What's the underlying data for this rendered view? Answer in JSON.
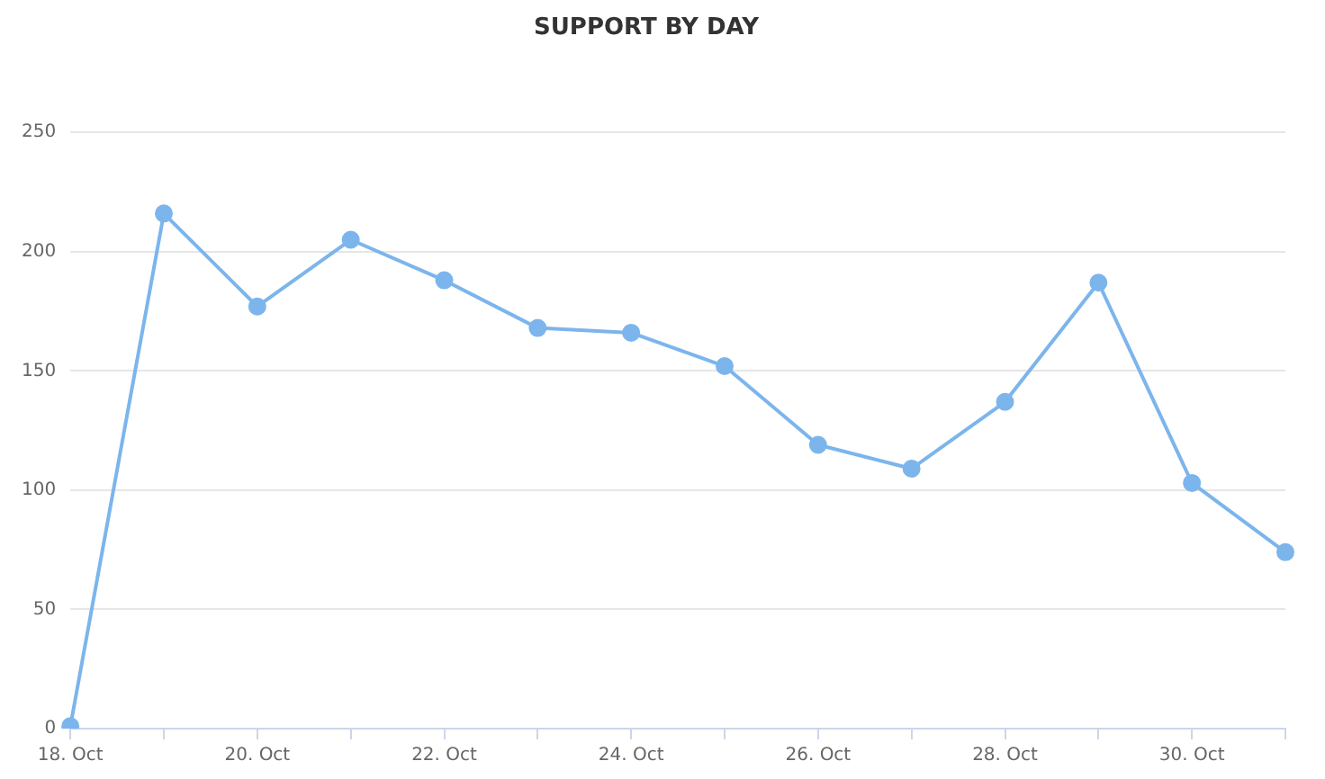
{
  "chart_data": {
    "type": "line",
    "title": "SUPPORT BY DAY",
    "categories": [
      "18. Oct",
      null,
      "20. Oct",
      null,
      "22. Oct",
      null,
      "24. Oct",
      null,
      "26. Oct",
      null,
      "28. Oct",
      null,
      "30. Oct",
      null
    ],
    "series": [
      {
        "color": "#7cb5ec",
        "values": [
          1,
          216,
          177,
          205,
          188,
          168,
          166,
          152,
          119,
          109,
          137,
          187,
          103,
          74
        ]
      }
    ],
    "ylim": [
      0,
      250
    ],
    "yticks": [
      0,
      50,
      100,
      150,
      200,
      250
    ],
    "grid": "y",
    "marker": "circle",
    "line_style": "solid"
  }
}
